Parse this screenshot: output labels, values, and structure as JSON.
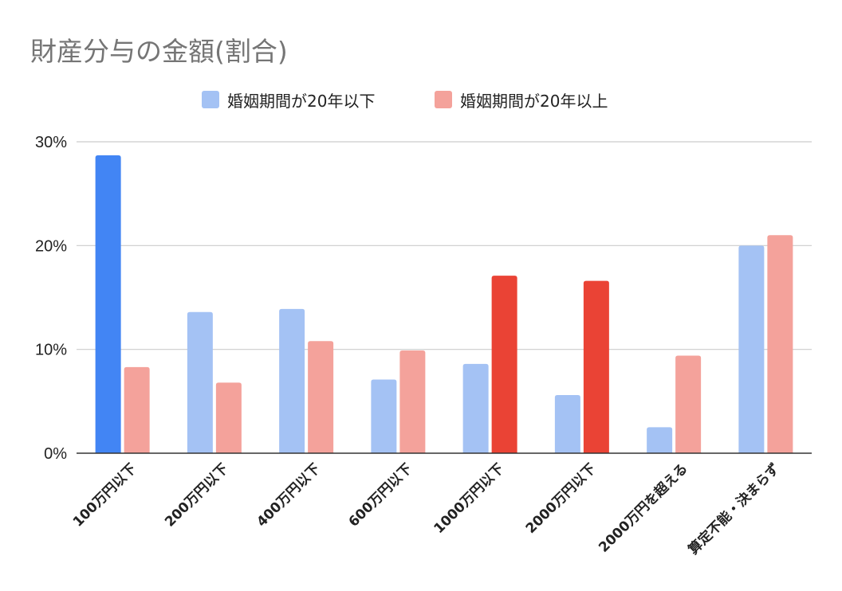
{
  "chart_data": {
    "type": "bar",
    "title": "財産分与の金額(割合)",
    "categories": [
      "100万円以下",
      "200万円以下",
      "400万円以下",
      "600万円以下",
      "1000万円以下",
      "2000万円以下",
      "2000万円を超える",
      "算定不能・決まらず"
    ],
    "series": [
      {
        "name": "婚姻期間が20年以下",
        "values": [
          28.7,
          13.6,
          13.9,
          7.1,
          8.6,
          5.6,
          2.5,
          20.0
        ],
        "color": "#a4c2f4",
        "highlight_color": "#4285f4",
        "highlight_index": [
          0
        ]
      },
      {
        "name": "婚姻期間が20年以上",
        "values": [
          8.3,
          6.8,
          10.8,
          9.9,
          17.1,
          16.6,
          9.4,
          21.0
        ],
        "color": "#f4a29b",
        "highlight_color": "#ea4335",
        "highlight_index": [
          4,
          5
        ]
      }
    ],
    "yticks": [
      "0%",
      "10%",
      "20%",
      "30%"
    ],
    "ylim": [
      0,
      30
    ],
    "grid": true,
    "legend_position": "top-center",
    "xlabel": "",
    "ylabel": ""
  }
}
